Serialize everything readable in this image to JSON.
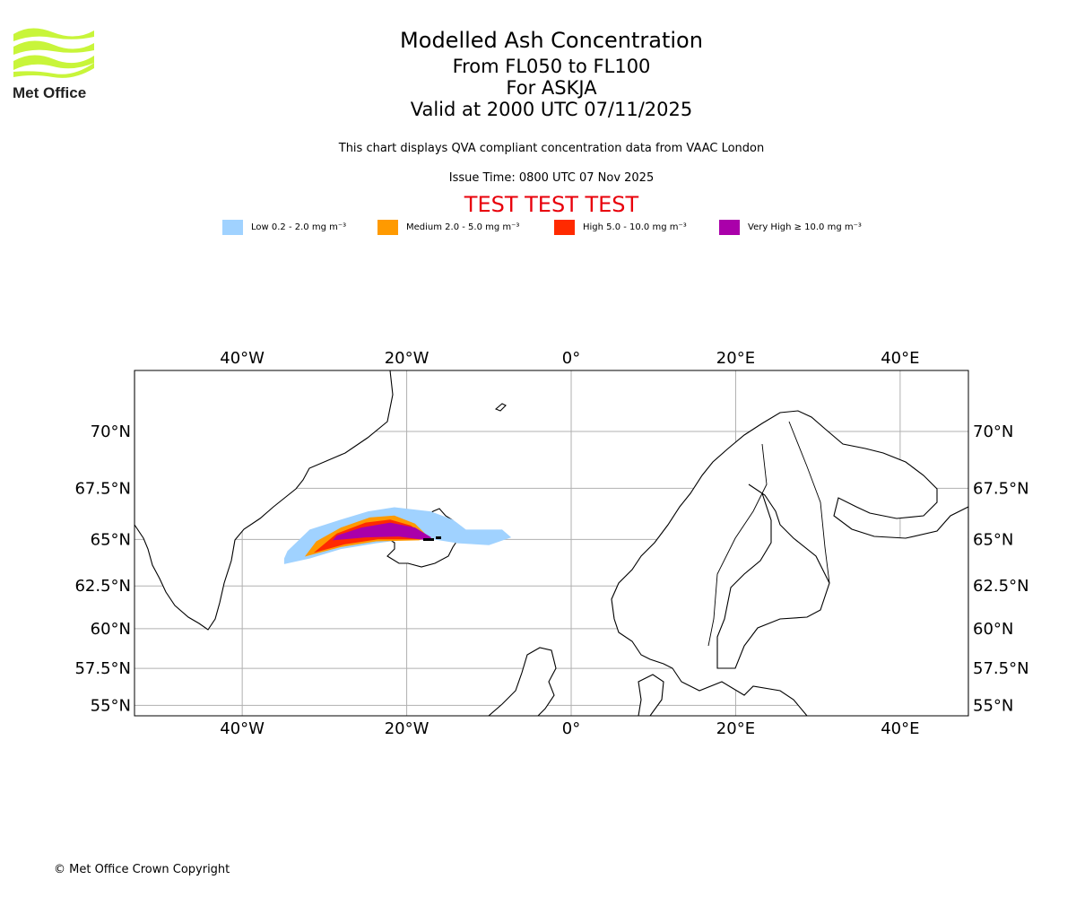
{
  "header": {
    "title": "Modelled Ash Concentration",
    "levels": "From FL050 to FL100",
    "volcano": "For ASKJA",
    "valid": "Valid at 2000 UTC 07/11/2025",
    "description": "This chart displays QVA compliant concentration data from VAAC London",
    "issue_time": "Issue Time: 0800 UTC 07 Nov 2025",
    "test_banner": "TEST TEST TEST"
  },
  "logo": {
    "text": "Met Office",
    "color": "#c8f53a"
  },
  "legend": [
    {
      "label": "Low 0.2 - 2.0 mg m⁻³",
      "color": "#a0d2ff"
    },
    {
      "label": "Medium 2.0 - 5.0 mg m⁻³",
      "color": "#ff9a00"
    },
    {
      "label": "High 5.0 - 10.0 mg m⁻³",
      "color": "#ff2a00"
    },
    {
      "label": "Very High ≥ 10.0 mg m⁻³",
      "color": "#aa00aa"
    }
  ],
  "footer": {
    "copyright": "© Met Office Crown Copyright"
  },
  "chart_data": {
    "type": "map",
    "projection": "mercator",
    "lon_range": [
      -53.1,
      48.3
    ],
    "lat_range": [
      54.3,
      73.8
    ],
    "grid": true,
    "lon_ticks": [
      {
        "v": -40,
        "label": "40°W"
      },
      {
        "v": -20,
        "label": "20°W"
      },
      {
        "v": 0,
        "label": "0°"
      },
      {
        "v": 20,
        "label": "20°E"
      },
      {
        "v": 40,
        "label": "40°E"
      }
    ],
    "lat_ticks": [
      {
        "v": 70,
        "label": "70°N"
      },
      {
        "v": 67.5,
        "label": "67.5°N"
      },
      {
        "v": 65,
        "label": "65°N"
      },
      {
        "v": 62.5,
        "label": "62.5°N"
      },
      {
        "v": 60,
        "label": "60°N"
      },
      {
        "v": 57.5,
        "label": "57.5°N"
      },
      {
        "v": 55,
        "label": "55°N"
      }
    ],
    "ash_regions": [
      {
        "level": "Low",
        "color": "#a0d2ff",
        "polygon": [
          [
            -34.9,
            64.0
          ],
          [
            -34.9,
            63.7
          ],
          [
            -31.8,
            64.0
          ],
          [
            -28,
            64.5
          ],
          [
            -23.7,
            64.8
          ],
          [
            -18.2,
            65.1
          ],
          [
            -13.8,
            64.8
          ],
          [
            -10,
            64.7
          ],
          [
            -7.3,
            65.1
          ],
          [
            -8.4,
            65.5
          ],
          [
            -12.8,
            65.5
          ],
          [
            -14.4,
            66.0
          ],
          [
            -17.1,
            66.4
          ],
          [
            -21.5,
            66.6
          ],
          [
            -24.7,
            66.4
          ],
          [
            -28,
            66.0
          ],
          [
            -31.8,
            65.5
          ],
          [
            -34.5,
            64.4
          ]
        ]
      },
      {
        "level": "Medium",
        "color": "#ff9a00",
        "polygon": [
          [
            -32.4,
            64.1
          ],
          [
            -28,
            64.6
          ],
          [
            -23.7,
            64.9
          ],
          [
            -18.5,
            64.95
          ],
          [
            -17.3,
            65.1
          ],
          [
            -19,
            65.8
          ],
          [
            -21.5,
            66.2
          ],
          [
            -24.5,
            66.1
          ],
          [
            -28,
            65.6
          ],
          [
            -31,
            64.9
          ]
        ]
      },
      {
        "level": "High",
        "color": "#ff2a00",
        "polygon": [
          [
            -31.3,
            64.3
          ],
          [
            -27.5,
            64.75
          ],
          [
            -23.5,
            65.0
          ],
          [
            -18.5,
            65.0
          ],
          [
            -17.5,
            65.1
          ],
          [
            -19.5,
            65.7
          ],
          [
            -22,
            66.0
          ],
          [
            -25,
            65.85
          ],
          [
            -28.5,
            65.3
          ]
        ]
      },
      {
        "level": "Very High",
        "color": "#aa00aa",
        "polygon": [
          [
            -29,
            64.95
          ],
          [
            -25,
            65.1
          ],
          [
            -21,
            65.15
          ],
          [
            -17.5,
            64.95
          ],
          [
            -17,
            65.1
          ],
          [
            -19,
            65.6
          ],
          [
            -22,
            65.85
          ],
          [
            -25.5,
            65.6
          ],
          [
            -28.5,
            65.2
          ]
        ]
      }
    ]
  }
}
